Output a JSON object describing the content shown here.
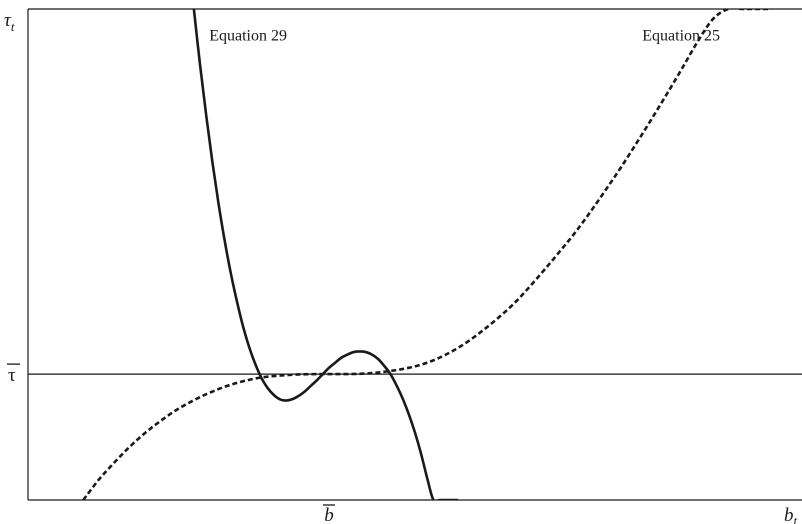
{
  "chart_data": {
    "type": "line",
    "title": "",
    "xlabel": "b",
    "xlabel_subscript": "t",
    "ylabel": "τ",
    "ylabel_subscript": "t",
    "x_ticks": [
      {
        "label": "b",
        "value": 0,
        "overline": true
      }
    ],
    "y_ticks": [
      {
        "label": "τ",
        "value": 0,
        "overline": true
      }
    ],
    "xlim": [
      -4.9,
      7.7
    ],
    "ylim": [
      -2.0,
      5.8
    ],
    "grid": false,
    "reference_line": {
      "y": 0
    },
    "series": [
      {
        "name": "Equation 29",
        "style": "solid",
        "x": [
          -2.2,
          -2.1,
          -2.0,
          -1.9,
          -1.8,
          -1.7,
          -1.6,
          -1.5,
          -1.4,
          -1.3,
          -1.2,
          -1.1,
          -1.0,
          -0.9,
          -0.8,
          -0.7,
          -0.6,
          -0.5,
          -0.4,
          -0.3,
          -0.2,
          -0.1,
          0.0,
          0.1,
          0.2,
          0.3,
          0.4,
          0.5,
          0.6,
          0.7,
          0.8,
          0.9,
          1.0,
          1.1,
          1.2,
          1.3,
          1.4,
          1.5,
          1.6,
          1.7,
          1.8,
          1.9,
          2.0,
          2.1
        ],
        "y": [
          5.8,
          4.92,
          4.12,
          3.38,
          2.72,
          2.13,
          1.61,
          1.16,
          0.76,
          0.43,
          0.16,
          -0.06,
          -0.22,
          -0.33,
          -0.4,
          -0.42,
          -0.4,
          -0.35,
          -0.28,
          -0.19,
          -0.1,
          0.0,
          0.1,
          0.18,
          0.26,
          0.31,
          0.35,
          0.36,
          0.35,
          0.31,
          0.24,
          0.13,
          0.0,
          -0.18,
          -0.39,
          -0.64,
          -0.93,
          -1.27,
          -1.66,
          -2.0,
          -2.0,
          -2.0,
          -2.0,
          -2.0
        ]
      },
      {
        "name": "Equation 25",
        "style": "dashed",
        "x": [
          -4.0,
          -3.75,
          -3.5,
          -3.25,
          -3.0,
          -2.75,
          -2.5,
          -2.25,
          -2.0,
          -1.75,
          -1.5,
          -1.25,
          -1.0,
          -0.75,
          -0.5,
          -0.25,
          0.0,
          0.25,
          0.5,
          0.75,
          1.0,
          1.25,
          1.5,
          1.75,
          2.0,
          2.25,
          2.5,
          2.75,
          3.0,
          3.25,
          3.5,
          3.75,
          4.0,
          4.25,
          4.5,
          4.75,
          5.0,
          5.25,
          5.5,
          5.75,
          6.0,
          6.25,
          6.5,
          6.75,
          7.0,
          7.2
        ],
        "y": [
          -2.0,
          -1.68,
          -1.41,
          -1.16,
          -0.94,
          -0.75,
          -0.58,
          -0.44,
          -0.32,
          -0.22,
          -0.14,
          -0.08,
          -0.04,
          -0.02,
          -0.005,
          -0.0005,
          0.0,
          0.0005,
          0.005,
          0.02,
          0.05,
          0.09,
          0.15,
          0.24,
          0.36,
          0.51,
          0.69,
          0.89,
          1.11,
          1.37,
          1.65,
          1.94,
          2.24,
          2.57,
          2.92,
          3.28,
          3.66,
          4.05,
          4.45,
          4.86,
          5.28,
          5.64,
          5.8,
          5.8,
          5.8,
          5.8
        ]
      }
    ],
    "annotations": [
      {
        "text": "Equation 29",
        "anchor_x": -1.95,
        "anchor_y": 5.3
      },
      {
        "text": "Equation 25",
        "anchor_x": 5.1,
        "anchor_y": 5.3
      }
    ]
  }
}
